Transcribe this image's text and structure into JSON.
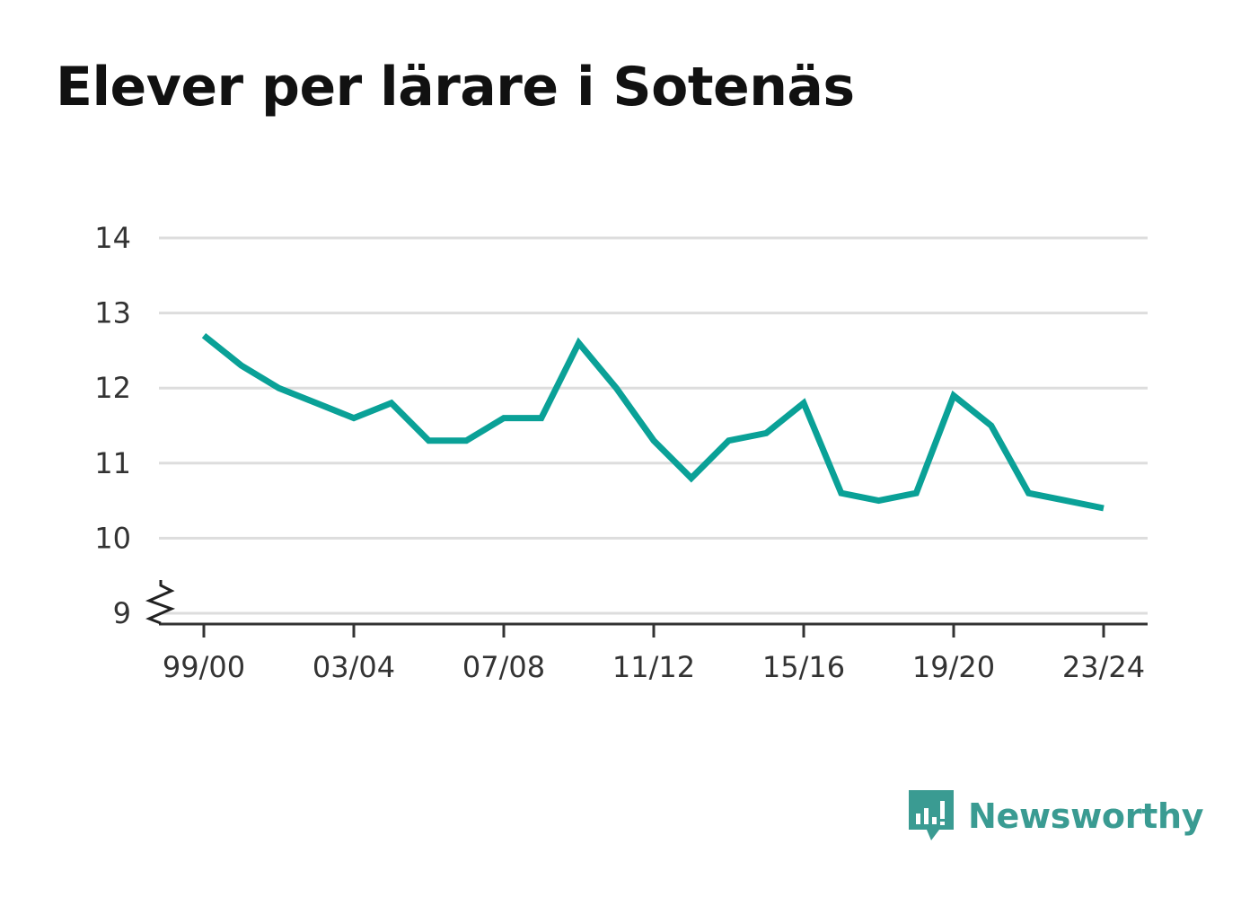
{
  "title": "Elever per lärare i Sotenäs",
  "brand": {
    "name": "Newsworthy",
    "color": "#3a9b92"
  },
  "chart_data": {
    "type": "line",
    "title": "Elever per lärare i Sotenäs",
    "xlabel": "",
    "ylabel": "",
    "x": [
      "99/00",
      "00/01",
      "01/02",
      "02/03",
      "03/04",
      "04/05",
      "05/06",
      "06/07",
      "07/08",
      "08/09",
      "09/10",
      "10/11",
      "11/12",
      "12/13",
      "13/14",
      "14/15",
      "15/16",
      "16/17",
      "17/18",
      "18/19",
      "19/20",
      "20/21",
      "21/22",
      "22/23",
      "23/24"
    ],
    "x_tick_labels": [
      "99/00",
      "03/04",
      "07/08",
      "11/12",
      "15/16",
      "19/20",
      "23/24"
    ],
    "y_tick_labels": [
      "9",
      "10",
      "11",
      "12",
      "13",
      "14"
    ],
    "ylim": [
      9,
      14
    ],
    "axis_break": true,
    "grid": true,
    "series": [
      {
        "color": "#0aa197",
        "values": [
          12.7,
          12.3,
          12.0,
          11.8,
          11.6,
          11.8,
          11.3,
          11.3,
          11.6,
          11.6,
          12.6,
          12.0,
          11.3,
          10.8,
          11.3,
          11.4,
          11.8,
          10.6,
          10.5,
          10.6,
          11.9,
          11.5,
          10.6,
          10.5,
          10.4
        ]
      }
    ]
  }
}
